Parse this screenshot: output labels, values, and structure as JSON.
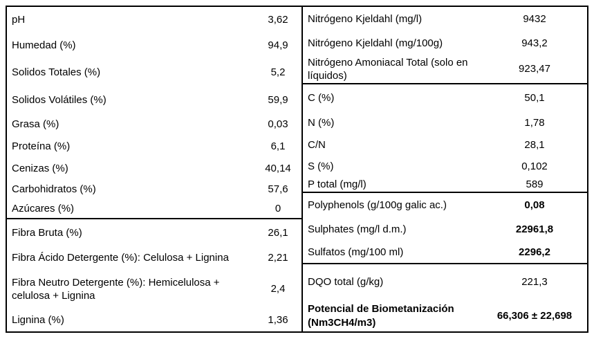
{
  "colors": {
    "background": "#ffffff",
    "border": "#000000",
    "text": "#000000"
  },
  "table": {
    "left_column": {
      "sections": [
        {
          "rows": [
            {
              "label": "pH",
              "value": "3,62"
            },
            {
              "label": "Humedad (%)",
              "value": "94,9"
            },
            {
              "label": "Solidos Totales (%)",
              "value": "5,2"
            },
            {
              "label": "Solidos Volátiles (%)",
              "value": "59,9"
            },
            {
              "label": "Grasa (%)",
              "value": "0,03"
            },
            {
              "label": "Proteína (%)",
              "value": "6,1"
            },
            {
              "label": "Cenizas (%)",
              "value": "40,14"
            },
            {
              "label": "Carbohidratos (%)",
              "value": "57,6"
            },
            {
              "label": "Azúcares (%)",
              "value": "0"
            }
          ]
        },
        {
          "rows": [
            {
              "label": "Fibra Bruta (%)",
              "value": "26,1"
            },
            {
              "label": "Fibra Ácido Detergente (%): Celulosa + Lignina",
              "value": "2,21"
            },
            {
              "label": "Fibra Neutro Detergente (%): Hemicelulosa + celulosa + Lignina",
              "value": "2,4"
            },
            {
              "label": "Lignina (%)",
              "value": "1,36"
            }
          ]
        }
      ]
    },
    "right_column": {
      "sections": [
        {
          "rows": [
            {
              "label": "Nitrógeno Kjeldahl (mg/l)",
              "value": "9432"
            },
            {
              "label": "Nitrógeno Kjeldahl (mg/100g)",
              "value": "943,2"
            },
            {
              "label": "Nitrógeno Amoniacal Total (solo en líquidos)",
              "value": "923,47"
            }
          ]
        },
        {
          "rows": [
            {
              "label": "C (%)",
              "value": "50,1"
            },
            {
              "label": "N (%)",
              "value": "1,78"
            },
            {
              "label": "C/N",
              "value": "28,1"
            },
            {
              "label": "S (%)",
              "value": "0,102"
            },
            {
              "label": "P total (mg/l)",
              "value": "589"
            }
          ]
        },
        {
          "rows": [
            {
              "label": "Polyphenols (g/100g galic ac.)",
              "value": "0,08",
              "value_bold": true
            },
            {
              "label": "Sulphates (mg/l d.m.)",
              "value": "22961,8",
              "value_bold": true
            },
            {
              "label": "Sulfatos (mg/100 ml)",
              "value": "2296,2",
              "value_bold": true
            }
          ]
        },
        {
          "rows": [
            {
              "label": "DQO total (g/kg)",
              "value": "221,3"
            },
            {
              "label": "Potencial de Biometanización (Nm3CH4/m3)",
              "value": "66,306 ± 22,698",
              "label_bold": true,
              "value_bold": true
            }
          ]
        }
      ]
    }
  }
}
